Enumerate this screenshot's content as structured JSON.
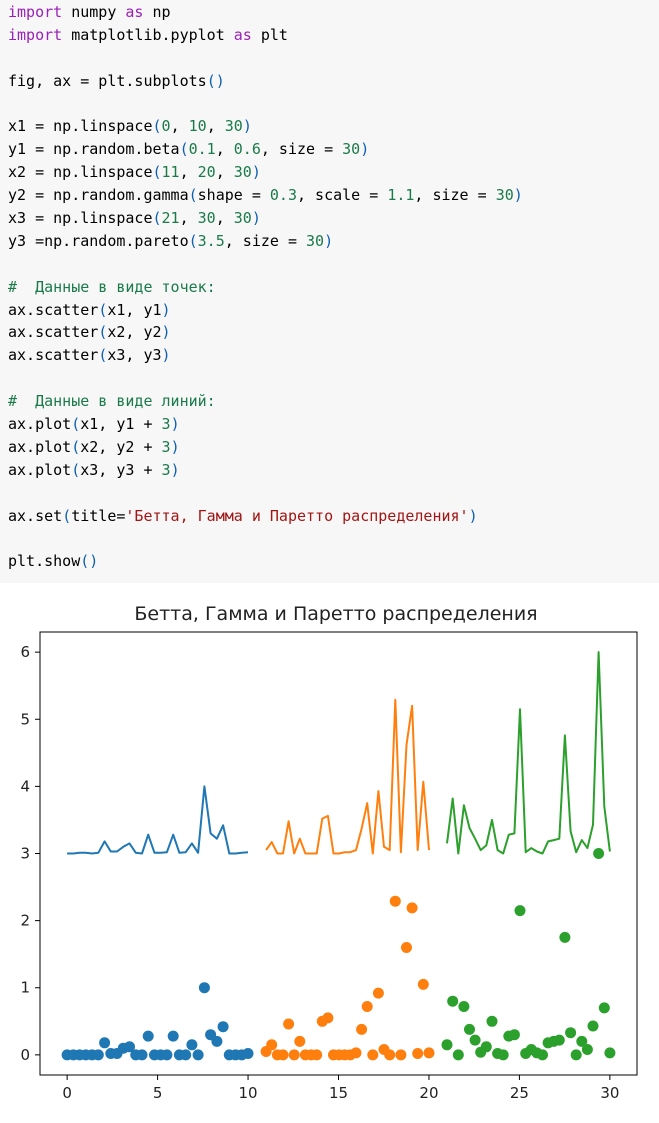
{
  "code_lines": [
    [
      {
        "t": "import",
        "c": "kw"
      },
      {
        "t": " numpy "
      },
      {
        "t": "as",
        "c": "kw"
      },
      {
        "t": " np"
      }
    ],
    [
      {
        "t": "import",
        "c": "kw"
      },
      {
        "t": " matplotlib.pyplot "
      },
      {
        "t": "as",
        "c": "kw"
      },
      {
        "t": " plt"
      }
    ],
    [],
    [
      {
        "t": "fig, ax = plt.subplots"
      },
      {
        "t": "()",
        "c": "par"
      }
    ],
    [],
    [
      {
        "t": "x1 = np.linspace"
      },
      {
        "t": "(",
        "c": "par"
      },
      {
        "t": "0",
        "c": "num"
      },
      {
        "t": ", "
      },
      {
        "t": "10",
        "c": "num"
      },
      {
        "t": ", "
      },
      {
        "t": "30",
        "c": "num"
      },
      {
        "t": ")",
        "c": "par"
      }
    ],
    [
      {
        "t": "y1 = np.random.beta"
      },
      {
        "t": "(",
        "c": "par"
      },
      {
        "t": "0.1",
        "c": "num"
      },
      {
        "t": ", "
      },
      {
        "t": "0.6",
        "c": "num"
      },
      {
        "t": ", size = "
      },
      {
        "t": "30",
        "c": "num"
      },
      {
        "t": ")",
        "c": "par"
      }
    ],
    [
      {
        "t": "x2 = np.linspace"
      },
      {
        "t": "(",
        "c": "par"
      },
      {
        "t": "11",
        "c": "num"
      },
      {
        "t": ", "
      },
      {
        "t": "20",
        "c": "num"
      },
      {
        "t": ", "
      },
      {
        "t": "30",
        "c": "num"
      },
      {
        "t": ")",
        "c": "par"
      }
    ],
    [
      {
        "t": "y2 = np.random.gamma"
      },
      {
        "t": "(",
        "c": "par"
      },
      {
        "t": "shape = "
      },
      {
        "t": "0.3",
        "c": "num"
      },
      {
        "t": ", scale = "
      },
      {
        "t": "1.1",
        "c": "num"
      },
      {
        "t": ", size = "
      },
      {
        "t": "30",
        "c": "num"
      },
      {
        "t": ")",
        "c": "par"
      }
    ],
    [
      {
        "t": "x3 = np.linspace"
      },
      {
        "t": "(",
        "c": "par"
      },
      {
        "t": "21",
        "c": "num"
      },
      {
        "t": ", "
      },
      {
        "t": "30",
        "c": "num"
      },
      {
        "t": ", "
      },
      {
        "t": "30",
        "c": "num"
      },
      {
        "t": ")",
        "c": "par"
      }
    ],
    [
      {
        "t": "y3 =np.random.pareto"
      },
      {
        "t": "(",
        "c": "par"
      },
      {
        "t": "3.5",
        "c": "num"
      },
      {
        "t": ", size = "
      },
      {
        "t": "30",
        "c": "num"
      },
      {
        "t": ")",
        "c": "par"
      }
    ],
    [],
    [
      {
        "t": "#  Данные в виде точек:",
        "c": "cmt"
      }
    ],
    [
      {
        "t": "ax.scatter"
      },
      {
        "t": "(",
        "c": "par"
      },
      {
        "t": "x1, y1"
      },
      {
        "t": ")",
        "c": "par"
      }
    ],
    [
      {
        "t": "ax.scatter"
      },
      {
        "t": "(",
        "c": "par"
      },
      {
        "t": "x2, y2"
      },
      {
        "t": ")",
        "c": "par"
      }
    ],
    [
      {
        "t": "ax.scatter"
      },
      {
        "t": "(",
        "c": "par"
      },
      {
        "t": "x3, y3"
      },
      {
        "t": ")",
        "c": "par"
      }
    ],
    [],
    [
      {
        "t": "#  Данные в виде линий:",
        "c": "cmt"
      }
    ],
    [
      {
        "t": "ax.plot"
      },
      {
        "t": "(",
        "c": "par"
      },
      {
        "t": "x1, y1 + "
      },
      {
        "t": "3",
        "c": "num"
      },
      {
        "t": ")",
        "c": "par"
      }
    ],
    [
      {
        "t": "ax.plot"
      },
      {
        "t": "(",
        "c": "par"
      },
      {
        "t": "x2, y2 + "
      },
      {
        "t": "3",
        "c": "num"
      },
      {
        "t": ")",
        "c": "par"
      }
    ],
    [
      {
        "t": "ax.plot"
      },
      {
        "t": "(",
        "c": "par"
      },
      {
        "t": "x3, y3 + "
      },
      {
        "t": "3",
        "c": "num"
      },
      {
        "t": ")",
        "c": "par"
      }
    ],
    [],
    [
      {
        "t": "ax.set"
      },
      {
        "t": "(",
        "c": "par"
      },
      {
        "t": "title="
      },
      {
        "t": "'Бетта, Гамма и Паретто распределения'",
        "c": "str"
      },
      {
        "t": ")",
        "c": "par"
      }
    ],
    [],
    [
      {
        "t": "plt.show"
      },
      {
        "t": "()",
        "c": "par"
      }
    ]
  ],
  "chart_data": {
    "type": "scatter",
    "title": "Бетта, Гамма и Паретто распределения",
    "xlim": [
      -1.5,
      31.5
    ],
    "ylim": [
      -0.3,
      6.3
    ],
    "xticks": [
      0,
      5,
      10,
      15,
      20,
      25,
      30
    ],
    "yticks": [
      0,
      1,
      2,
      3,
      4,
      5,
      6
    ],
    "grid": false,
    "series": [
      {
        "color": "#1f77b4",
        "x": [
          0,
          0.345,
          0.69,
          1.034,
          1.379,
          1.724,
          2.069,
          2.414,
          2.759,
          3.103,
          3.448,
          3.793,
          4.138,
          4.483,
          4.828,
          5.172,
          5.517,
          5.862,
          6.207,
          6.552,
          6.897,
          7.241,
          7.586,
          7.931,
          8.276,
          8.621,
          8.966,
          9.31,
          9.655,
          10
        ],
        "y": [
          0,
          0,
          0,
          0,
          0,
          0,
          0.18,
          0.02,
          0.02,
          0.1,
          0.12,
          0,
          0,
          0.28,
          0,
          0,
          0,
          0.28,
          0,
          0,
          0.15,
          0,
          1.0,
          0.3,
          0.2,
          0.42,
          0,
          0,
          0,
          0.02
        ],
        "mode": "scatter"
      },
      {
        "color": "#ff7f0e",
        "x": [
          11,
          11.31,
          11.621,
          11.931,
          12.241,
          12.552,
          12.862,
          13.172,
          13.483,
          13.793,
          14.103,
          14.414,
          14.724,
          15.034,
          15.345,
          15.655,
          15.966,
          16.276,
          16.586,
          16.897,
          17.207,
          17.517,
          17.828,
          18.138,
          18.448,
          18.759,
          19.069,
          19.379,
          19.69,
          20
        ],
        "y": [
          0.05,
          0.15,
          0,
          0,
          0.46,
          0,
          0.2,
          0,
          0,
          0,
          0.5,
          0.55,
          0,
          0,
          0,
          0,
          0.03,
          0.38,
          0.72,
          0,
          0.92,
          0.08,
          0,
          2.29,
          0,
          1.6,
          2.19,
          0.02,
          1.05,
          0.03
        ],
        "mode": "scatter"
      },
      {
        "color": "#2ca02c",
        "x": [
          21,
          21.31,
          21.621,
          21.931,
          22.241,
          22.552,
          22.862,
          23.172,
          23.483,
          23.793,
          24.103,
          24.414,
          24.724,
          25.034,
          25.345,
          25.655,
          25.966,
          26.276,
          26.586,
          26.897,
          27.207,
          27.517,
          27.828,
          28.138,
          28.448,
          28.759,
          29.069,
          29.379,
          29.69,
          30
        ],
        "y": [
          0.15,
          0.8,
          0,
          0.72,
          0.38,
          0.22,
          0.04,
          0.12,
          0.5,
          0.02,
          0,
          0.28,
          0.3,
          2.15,
          0.02,
          0.08,
          0.03,
          0,
          0.18,
          0.2,
          0.22,
          1.75,
          0.33,
          0,
          0.2,
          0.08,
          0.43,
          3.0,
          0.7,
          0.03
        ],
        "mode": "scatter"
      },
      {
        "color": "#1f77b4",
        "x": [
          0,
          0.345,
          0.69,
          1.034,
          1.379,
          1.724,
          2.069,
          2.414,
          2.759,
          3.103,
          3.448,
          3.793,
          4.138,
          4.483,
          4.828,
          5.172,
          5.517,
          5.862,
          6.207,
          6.552,
          6.897,
          7.241,
          7.586,
          7.931,
          8.276,
          8.621,
          8.966,
          9.31,
          9.655,
          10
        ],
        "y": [
          3.0,
          3.0,
          3.01,
          3.01,
          3.0,
          3.01,
          3.18,
          3.03,
          3.03,
          3.1,
          3.15,
          3.01,
          3.0,
          3.28,
          3.01,
          3.01,
          3.02,
          3.28,
          3.01,
          3.02,
          3.15,
          3.01,
          4.0,
          3.3,
          3.22,
          3.42,
          3.0,
          3.0,
          3.01,
          3.02
        ],
        "mode": "line"
      },
      {
        "color": "#ff7f0e",
        "x": [
          11,
          11.31,
          11.621,
          11.931,
          12.241,
          12.552,
          12.862,
          13.172,
          13.483,
          13.793,
          14.103,
          14.414,
          14.724,
          15.034,
          15.345,
          15.655,
          15.966,
          16.276,
          16.586,
          16.897,
          17.207,
          17.517,
          17.828,
          18.138,
          18.448,
          18.759,
          19.069,
          19.379,
          19.69,
          20
        ],
        "y": [
          3.05,
          3.17,
          3.0,
          3.0,
          3.48,
          3.0,
          3.22,
          3.0,
          3.0,
          3.0,
          3.52,
          3.56,
          3.0,
          3.0,
          3.02,
          3.02,
          3.05,
          3.37,
          3.75,
          3.0,
          3.93,
          3.1,
          3.05,
          5.29,
          3.02,
          4.62,
          5.2,
          3.05,
          4.07,
          3.05
        ],
        "mode": "line"
      },
      {
        "color": "#2ca02c",
        "x": [
          21,
          21.31,
          21.621,
          21.931,
          22.241,
          22.552,
          22.862,
          23.172,
          23.483,
          23.793,
          24.103,
          24.414,
          24.724,
          25.034,
          25.345,
          25.655,
          25.966,
          26.276,
          26.586,
          26.897,
          27.207,
          27.517,
          27.828,
          28.138,
          28.448,
          28.759,
          29.069,
          29.379,
          29.69,
          30
        ],
        "y": [
          3.15,
          3.82,
          3.0,
          3.72,
          3.38,
          3.22,
          3.05,
          3.12,
          3.5,
          3.05,
          3.0,
          3.28,
          3.3,
          5.15,
          3.02,
          3.08,
          3.03,
          3.0,
          3.18,
          3.2,
          3.22,
          4.76,
          3.33,
          3.02,
          3.2,
          3.08,
          3.43,
          6.0,
          3.7,
          3.03
        ],
        "mode": "line"
      }
    ]
  }
}
